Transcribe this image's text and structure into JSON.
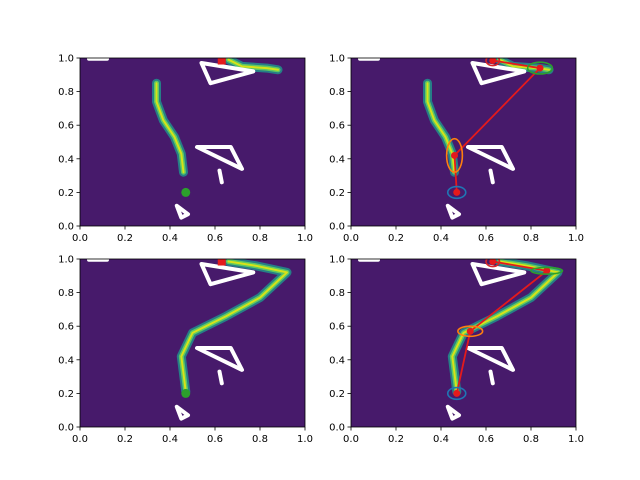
{
  "chart_data": [
    {
      "type": "heatmap",
      "title": "",
      "xlabel": "",
      "ylabel": "",
      "xlim": [
        0,
        1
      ],
      "ylim": [
        0,
        1
      ],
      "xticks": [
        "0.0",
        "0.2",
        "0.4",
        "0.6",
        "0.8",
        "1.0"
      ],
      "yticks": [
        "0.0",
        "0.2",
        "0.4",
        "0.6",
        "0.8",
        "1.0"
      ],
      "background_color": "#471a6b",
      "obstacles": [
        [
          [
            0.54,
            0.97
          ],
          [
            0.77,
            0.92
          ],
          [
            0.58,
            0.85
          ]
        ],
        [
          [
            0.52,
            0.47
          ],
          [
            0.67,
            0.47
          ],
          [
            0.72,
            0.34
          ]
        ],
        [
          [
            0.43,
            0.12
          ],
          [
            0.48,
            0.07
          ],
          [
            0.45,
            0.05
          ]
        ],
        [
          [
            0.62,
            0.33
          ],
          [
            0.63,
            0.26
          ]
        ],
        [
          [
            0.04,
            0.995
          ],
          [
            0.12,
            0.995
          ]
        ]
      ],
      "density_path": [
        [
          0.34,
          0.85
        ],
        [
          0.34,
          0.74
        ],
        [
          0.37,
          0.63
        ],
        [
          0.42,
          0.53
        ],
        [
          0.45,
          0.43
        ],
        [
          0.46,
          0.32
        ]
      ],
      "density_path_top": [
        [
          0.66,
          0.99
        ],
        [
          0.72,
          0.95
        ],
        [
          0.83,
          0.94
        ],
        [
          0.88,
          0.93
        ]
      ],
      "start_point": [
        0.47,
        0.2
      ],
      "target_point": [
        0.63,
        0.985
      ]
    },
    {
      "type": "heatmap",
      "title": "",
      "xlim": [
        0,
        1
      ],
      "ylim": [
        0,
        1
      ],
      "xticks": [
        "0.0",
        "0.2",
        "0.4",
        "0.6",
        "0.8",
        "1.0"
      ],
      "yticks": [
        "0.0",
        "0.2",
        "0.4",
        "0.6",
        "0.8",
        "1.0"
      ],
      "density_path": [
        [
          0.34,
          0.85
        ],
        [
          0.34,
          0.74
        ],
        [
          0.37,
          0.63
        ],
        [
          0.42,
          0.53
        ],
        [
          0.45,
          0.43
        ],
        [
          0.46,
          0.32
        ]
      ],
      "path_line": [
        [
          0.47,
          0.2
        ],
        [
          0.46,
          0.42
        ],
        [
          0.84,
          0.94
        ],
        [
          0.63,
          0.985
        ]
      ],
      "ellipses": [
        {
          "cx": 0.47,
          "cy": 0.2,
          "rx": 0.04,
          "ry": 0.035,
          "color": "#1f77b4"
        },
        {
          "cx": 0.46,
          "cy": 0.42,
          "rx": 0.035,
          "ry": 0.1,
          "color": "#ff7f0e"
        },
        {
          "cx": 0.84,
          "cy": 0.94,
          "rx": 0.055,
          "ry": 0.035,
          "color": "#2ca02c"
        },
        {
          "cx": 0.63,
          "cy": 0.985,
          "rx": 0.03,
          "ry": 0.03,
          "color": "#d62728"
        }
      ]
    },
    {
      "type": "heatmap",
      "title": "",
      "xlim": [
        0,
        1
      ],
      "ylim": [
        0,
        1
      ],
      "xticks": [
        "0.0",
        "0.2",
        "0.4",
        "0.6",
        "0.8",
        "1.0"
      ],
      "yticks": [
        "0.0",
        "0.2",
        "0.4",
        "0.6",
        "0.8",
        "1.0"
      ],
      "density_path": [
        [
          0.47,
          0.21
        ],
        [
          0.45,
          0.42
        ],
        [
          0.5,
          0.56
        ],
        [
          0.65,
          0.66
        ],
        [
          0.8,
          0.77
        ],
        [
          0.92,
          0.92
        ],
        [
          0.78,
          0.96
        ],
        [
          0.66,
          0.985
        ]
      ],
      "start_point": [
        0.47,
        0.2
      ],
      "target_point": [
        0.63,
        0.985
      ]
    },
    {
      "type": "heatmap",
      "title": "",
      "xlim": [
        0,
        1
      ],
      "ylim": [
        0,
        1
      ],
      "xticks": [
        "0.0",
        "0.2",
        "0.4",
        "0.6",
        "0.8",
        "1.0"
      ],
      "yticks": [
        "0.0",
        "0.2",
        "0.4",
        "0.6",
        "0.8",
        "1.0"
      ],
      "density_path": [
        [
          0.47,
          0.21
        ],
        [
          0.45,
          0.42
        ],
        [
          0.5,
          0.56
        ],
        [
          0.65,
          0.66
        ],
        [
          0.8,
          0.77
        ],
        [
          0.92,
          0.92
        ],
        [
          0.78,
          0.96
        ],
        [
          0.66,
          0.985
        ]
      ],
      "path_line": [
        [
          0.47,
          0.2
        ],
        [
          0.53,
          0.57
        ],
        [
          0.87,
          0.93
        ],
        [
          0.63,
          0.985
        ]
      ],
      "ellipses": [
        {
          "cx": 0.47,
          "cy": 0.2,
          "rx": 0.04,
          "ry": 0.035,
          "color": "#1f77b4"
        },
        {
          "cx": 0.53,
          "cy": 0.57,
          "rx": 0.055,
          "ry": 0.03,
          "color": "#ff7f0e"
        },
        {
          "cx": 0.87,
          "cy": 0.93,
          "rx": 0.07,
          "ry": 0.02,
          "color": "#2ca02c"
        },
        {
          "cx": 0.63,
          "cy": 0.985,
          "rx": 0.03,
          "ry": 0.03,
          "color": "#d62728"
        }
      ]
    }
  ]
}
